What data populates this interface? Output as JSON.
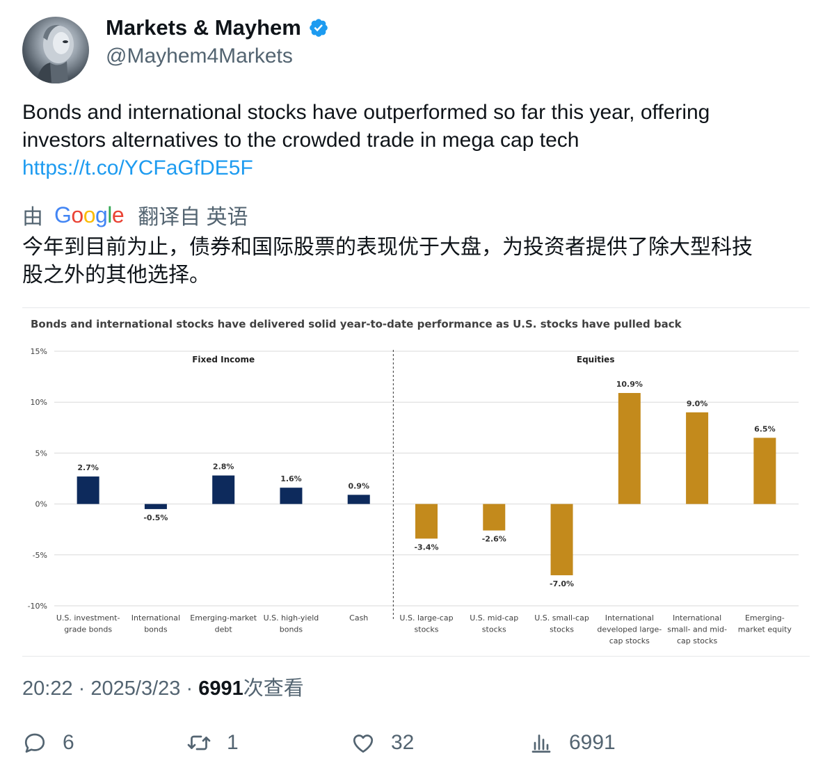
{
  "author": {
    "name": "Markets & Mayhem",
    "handle": "@Mayhem4Markets",
    "verified_color": "#1d9bf0"
  },
  "tweet": {
    "text_line1": "Bonds and international stocks have outperformed so far this year, offering",
    "text_line2": "investors alternatives to the crowded trade in mega cap tech",
    "link": "https://t.co/YCFaGfDE5F"
  },
  "translation": {
    "prefix": "由",
    "provider": "Google",
    "suffix": "翻译自 英语",
    "text_line1": "今年到目前为止，债券和国际股票的表现优于大盘，为投资者提供了除大型科技",
    "text_line2": "股之外的其他选择。"
  },
  "meta": {
    "time": "20:22",
    "separator": "·",
    "date": "2025/3/23",
    "views_count": "6991",
    "views_label": "次查看"
  },
  "actions": {
    "reply_count": "6",
    "retweet_count": "1",
    "like_count": "32",
    "views_count": "6991"
  },
  "colors": {
    "link": "#1d9bf0",
    "fixed_income_bar": "#0d2a5c",
    "equity_bar": "#c38a1c"
  },
  "chart_data": {
    "type": "bar",
    "title": "Bonds and international  stocks have delivered solid  year-to-date  performance  as U.S. stocks have pulled back",
    "ylim": [
      -10,
      15
    ],
    "yticks": [
      "15%",
      "10%",
      "5%",
      "0%",
      "-5%",
      "-10%"
    ],
    "ytick_values": [
      15,
      10,
      5,
      0,
      -5,
      -10
    ],
    "grid": true,
    "groups": [
      {
        "name": "Fixed Income",
        "category_indices": [
          0,
          1,
          2,
          3,
          4
        ]
      },
      {
        "name": "Equities",
        "category_indices": [
          5,
          6,
          7,
          8,
          9,
          10
        ]
      }
    ],
    "categories": [
      [
        "U.S. investment-",
        "grade bonds"
      ],
      [
        "International",
        "bonds"
      ],
      [
        "Emerging-market",
        "debt"
      ],
      [
        "U.S. high-yield",
        "bonds"
      ],
      [
        "Cash"
      ],
      [
        "U.S. large-cap",
        "stocks"
      ],
      [
        "U.S. mid-cap",
        "stocks"
      ],
      [
        "U.S. small-cap",
        "stocks"
      ],
      [
        "International",
        "developed large-",
        "cap stocks"
      ],
      [
        "International",
        "small- and mid-",
        "cap stocks"
      ],
      [
        "Emerging-",
        "market equity"
      ]
    ],
    "values": [
      2.7,
      -0.5,
      2.8,
      1.6,
      0.9,
      -3.4,
      -2.6,
      -7.0,
      10.9,
      9.0,
      6.5
    ],
    "data_labels": [
      "2.7%",
      "-0.5%",
      "2.8%",
      "1.6%",
      "0.9%",
      "-3.4%",
      "-2.6%",
      "-7.0%",
      "10.9%",
      "9.0%",
      "6.5%"
    ]
  }
}
